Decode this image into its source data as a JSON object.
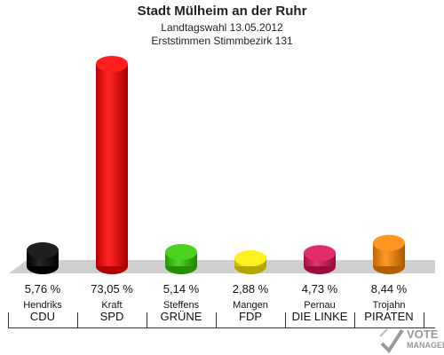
{
  "header": {
    "title": "Stadt Mülheim an der Ruhr",
    "subtitle1": "Landtagswahl 13.05.2012",
    "subtitle2": "Erststimmen Stimmbezirk 131"
  },
  "chart_data": {
    "type": "bar",
    "categories": [
      "CDU",
      "SPD",
      "GRÜNE",
      "FDP",
      "DIE LINKE",
      "PIRATEN"
    ],
    "candidates": [
      "Hendriks",
      "Kraft",
      "Steffens",
      "Mangen",
      "Pernau",
      "Trojahn"
    ],
    "values": [
      5.76,
      73.05,
      5.14,
      2.88,
      4.73,
      8.44
    ],
    "value_labels": [
      "5,76 %",
      "73,05 %",
      "5,14 %",
      "2,88 %",
      "4,73 %",
      "8,44 %"
    ],
    "colors": [
      "#000000",
      "#ff0000",
      "#33cc00",
      "#ffee00",
      "#dd1155",
      "#ff8800"
    ],
    "ylim": [
      0,
      73.05
    ]
  },
  "logo": {
    "line1": "VOTE",
    "line2": "MANAGER",
    "icon": "ballot-check-icon"
  }
}
